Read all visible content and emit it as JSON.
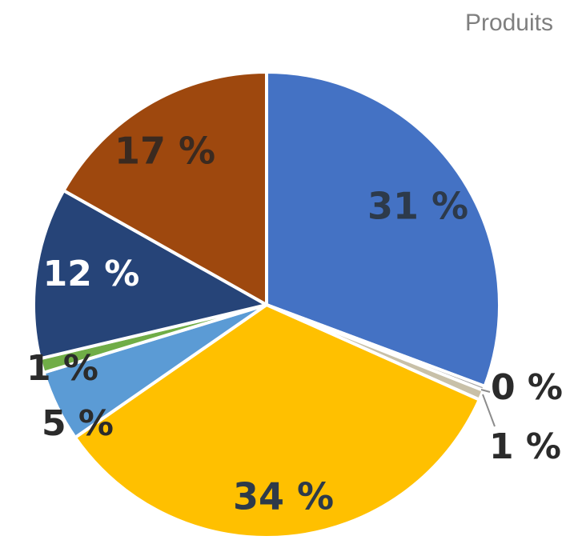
{
  "chart_data": {
    "type": "pie",
    "title": "Produits",
    "slices": [
      {
        "label": "31 %",
        "value": 31,
        "color": "#4472c4",
        "label_color": "#2d3a4a"
      },
      {
        "label": "0 %",
        "value": 0.3,
        "color": "#a5a5a5",
        "label_color": "#2b2b2b"
      },
      {
        "label": "1 %",
        "value": 0.7,
        "color": "#c8c0a8",
        "label_color": "#2b2b2b"
      },
      {
        "label": "34 %",
        "value": 34,
        "color": "#ffc000",
        "label_color": "#2d3a4a"
      },
      {
        "label": "5 %",
        "value": 5,
        "color": "#5b9bd5",
        "label_color": "#2b2b2b"
      },
      {
        "label": "1 %",
        "value": 1,
        "color": "#70ad47",
        "label_color": "#2b2b2b"
      },
      {
        "label": "12 %",
        "value": 12,
        "color": "#264478",
        "label_color": "#ffffff"
      },
      {
        "label": "17 %",
        "value": 17,
        "color": "#9e480e",
        "label_color": "#3a2a20"
      }
    ],
    "legend": "none"
  }
}
